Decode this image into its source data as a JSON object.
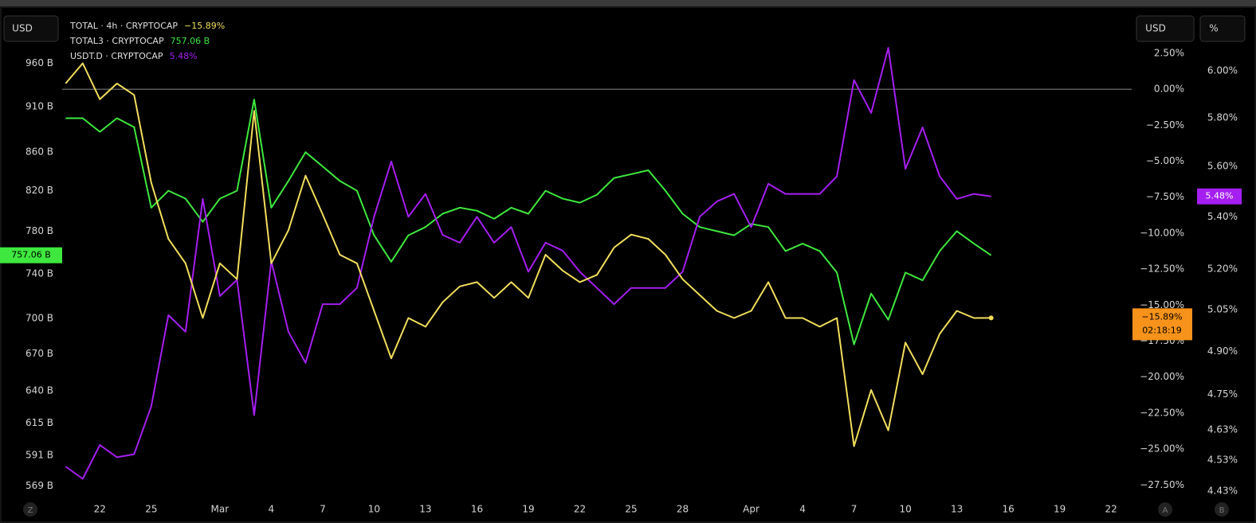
{
  "chart_data": {
    "type": "line",
    "buttons": {
      "left_currency": "USD",
      "right_currency": "USD",
      "right_percent": "%",
      "left_corner": "Z",
      "right_a": "A",
      "right_b": "B"
    },
    "x": [
      -2,
      -1,
      0,
      1,
      2,
      3,
      4,
      5,
      6,
      7,
      8,
      9,
      10,
      11,
      12,
      13,
      14,
      15,
      16,
      17,
      18,
      19,
      20,
      21,
      22,
      23,
      24,
      25,
      26,
      27,
      28,
      29,
      30,
      31,
      32,
      33,
      34,
      35,
      36,
      37,
      38,
      39,
      40,
      41,
      42,
      43,
      44,
      45,
      46,
      47,
      48,
      49,
      50,
      51,
      52
    ],
    "xlim": [
      -2.2,
      60.2
    ],
    "xticks": [
      {
        "value": 0,
        "label": "22"
      },
      {
        "value": 3,
        "label": "25"
      },
      {
        "value": 7,
        "label": "Mar"
      },
      {
        "value": 10,
        "label": "4"
      },
      {
        "value": 13,
        "label": "7"
      },
      {
        "value": 16,
        "label": "10"
      },
      {
        "value": 19,
        "label": "13"
      },
      {
        "value": 22,
        "label": "16"
      },
      {
        "value": 25,
        "label": "19"
      },
      {
        "value": 28,
        "label": "22"
      },
      {
        "value": 31,
        "label": "25"
      },
      {
        "value": 34,
        "label": "28"
      },
      {
        "value": 38,
        "label": "Apr"
      },
      {
        "value": 41,
        "label": "4"
      },
      {
        "value": 44,
        "label": "7"
      },
      {
        "value": 47,
        "label": "10"
      },
      {
        "value": 50,
        "label": "13"
      },
      {
        "value": 53,
        "label": "16"
      },
      {
        "value": 56,
        "label": "19"
      },
      {
        "value": 59,
        "label": "22"
      }
    ],
    "ylim": [
      561,
      1023
    ],
    "ylog": true,
    "yticks": [
      {
        "value": 960,
        "label": "960 B"
      },
      {
        "value": 910,
        "label": "910 B"
      },
      {
        "value": 860,
        "label": "860 B"
      },
      {
        "value": 820,
        "label": "820 B"
      },
      {
        "value": 780,
        "label": "780 B"
      },
      {
        "value": 740,
        "label": "740 B"
      },
      {
        "value": 700,
        "label": "700 B"
      },
      {
        "value": 670,
        "label": "670 B"
      },
      {
        "value": 640,
        "label": "640 B"
      },
      {
        "value": 615,
        "label": "615 B"
      },
      {
        "value": 591,
        "label": "591 B"
      },
      {
        "value": 569,
        "label": "569 B"
      }
    ],
    "y2lim": [
      5.37,
      -28.37
    ],
    "y2ticks": [
      {
        "value": 2.5,
        "label": "2.50%"
      },
      {
        "value": 0,
        "label": "0.00%"
      },
      {
        "value": -2.5,
        "label": "−2.50%"
      },
      {
        "value": -5,
        "label": "−5.00%"
      },
      {
        "value": -7.5,
        "label": "−7.50%"
      },
      {
        "value": -10,
        "label": "−10.00%"
      },
      {
        "value": -12.5,
        "label": "−12.50%"
      },
      {
        "value": -15,
        "label": "−15.00%"
      },
      {
        "value": -17.5,
        "label": "−17.50%"
      },
      {
        "value": -20,
        "label": "−20.00%"
      },
      {
        "value": -22.5,
        "label": "−22.50%"
      },
      {
        "value": -25,
        "label": "−25.00%"
      },
      {
        "value": -27.5,
        "label": "−27.50%"
      }
    ],
    "baseline": 0,
    "y3lim": [
      4.41,
      6.26
    ],
    "y3log": true,
    "y3ticks": [
      {
        "value": 6,
        "label": "6.00%"
      },
      {
        "value": 5.8,
        "label": "5.80%"
      },
      {
        "value": 5.6,
        "label": "5.60%"
      },
      {
        "value": 5.4,
        "label": "5.40%"
      },
      {
        "value": 5.2,
        "label": "5.20%"
      },
      {
        "value": 5.05,
        "label": "5.05%"
      },
      {
        "value": 4.9,
        "label": "4.90%"
      },
      {
        "value": 4.75,
        "label": "4.75%"
      },
      {
        "value": 4.63,
        "label": "4.63%"
      },
      {
        "value": 4.53,
        "label": "4.53%"
      },
      {
        "value": 4.43,
        "label": "4.43%"
      }
    ],
    "countdown": "02:18:19",
    "series": [
      {
        "name": "TOTAL · 4h · CRYPTOCAP",
        "color": "#f2de5c",
        "axis": "y2",
        "legend_value": "−15.89%",
        "label_color": "#f7931a",
        "values": [
          0.4,
          1.8,
          -0.7,
          0.4,
          -0.4,
          -6.5,
          -10.4,
          -12.1,
          -15.9,
          -12.1,
          -13.2,
          -1.5,
          -12.1,
          -9.8,
          -6.0,
          -8.7,
          -11.5,
          -12.1,
          -15.4,
          -18.7,
          -15.9,
          -16.5,
          -14.8,
          -13.7,
          -13.4,
          -14.5,
          -13.4,
          -14.5,
          -11.5,
          -12.6,
          -13.4,
          -12.9,
          -11.0,
          -10.1,
          -10.4,
          -11.5,
          -13.2,
          -14.3,
          -15.4,
          -15.9,
          -15.4,
          -13.4,
          -15.9,
          -15.9,
          -16.5,
          -15.9,
          -24.8,
          -20.9,
          -23.7,
          -17.6,
          -19.8,
          -17.0,
          -15.4,
          -15.9,
          -15.89
        ]
      },
      {
        "name": "TOTAL3 · CRYPTOCAP",
        "color": "#3ee83e",
        "axis": "y",
        "legend_value": "757.06 B",
        "label_color": "#3ee83e",
        "values": [
          897,
          897,
          882,
          897,
          887,
          803,
          820,
          812,
          789,
          812,
          820,
          918,
          803,
          830,
          860,
          845,
          830,
          820,
          776,
          751,
          776,
          784,
          797,
          803,
          800,
          792,
          803,
          797,
          820,
          812,
          808,
          816,
          833,
          837,
          841,
          820,
          797,
          784,
          780,
          776,
          787,
          784,
          761,
          768,
          761,
          741,
          678,
          722,
          699,
          741,
          734,
          761,
          780,
          768,
          757.06
        ]
      },
      {
        "name": "USDT.D · CRYPTOCAP",
        "color": "#a51ff0",
        "axis": "y3",
        "legend_value": "5.48%",
        "label_color": "#a51ff0",
        "values": [
          4.51,
          4.47,
          4.58,
          4.54,
          4.55,
          4.71,
          5.03,
          4.97,
          5.47,
          5.1,
          5.16,
          4.68,
          5.23,
          4.97,
          4.86,
          5.07,
          5.07,
          5.13,
          5.4,
          5.62,
          5.4,
          5.49,
          5.33,
          5.3,
          5.4,
          5.3,
          5.36,
          5.19,
          5.3,
          5.27,
          5.19,
          5.13,
          5.07,
          5.13,
          5.13,
          5.13,
          5.19,
          5.4,
          5.46,
          5.49,
          5.36,
          5.53,
          5.49,
          5.49,
          5.49,
          5.56,
          5.96,
          5.82,
          6.1,
          5.59,
          5.76,
          5.56,
          5.47,
          5.49,
          5.48
        ]
      }
    ]
  }
}
